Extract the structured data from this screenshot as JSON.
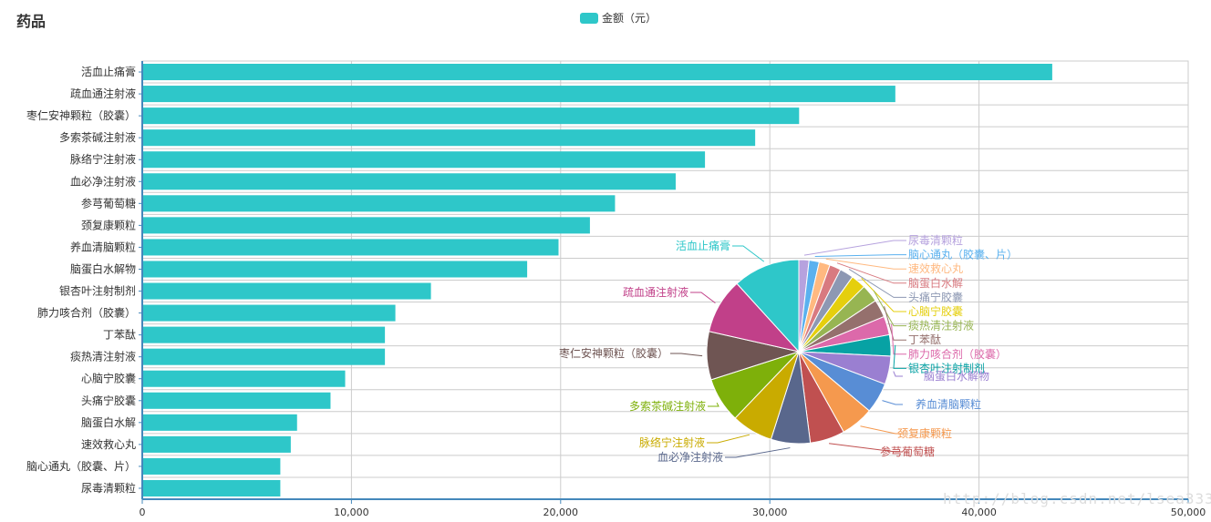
{
  "title": "药品",
  "legend": {
    "label": "金额（元）",
    "color": "#2ec7c9"
  },
  "watermark": "http://blog.csdn.net/lsea333",
  "chart_data": [
    {
      "type": "bar",
      "orientation": "horizontal",
      "series": [
        {
          "name": "金额（元）",
          "color": "#2ec7c9",
          "values": [
            43500,
            36000,
            31400,
            29300,
            26900,
            25500,
            22600,
            21400,
            19900,
            18400,
            13800,
            12100,
            11600,
            11600,
            9700,
            9000,
            7400,
            7100,
            6600,
            6600
          ]
        }
      ],
      "categories": [
        "活血止痛膏",
        "疏血通注射液",
        "枣仁安神颗粒（胶囊）",
        "多索茶碱注射液",
        "脉络宁注射液",
        "血必净注射液",
        "参芎葡萄糖",
        "颈复康颗粒",
        "养血清脑颗粒",
        "脑蛋白水解物",
        "银杏叶注射制剂",
        "肺力咳合剂（胶囊）",
        "丁苯酞",
        "痰热清注射液",
        "心脑宁胶囊",
        "头痛宁胶囊",
        "脑蛋白水解",
        "速效救心丸",
        "脑心通丸（胶囊、片）",
        "尿毒清颗粒"
      ],
      "xlim": [
        0,
        50000
      ],
      "xticks": [
        "0",
        "10,000",
        "20,000",
        "30,000",
        "40,000",
        "50,000"
      ],
      "grid": true
    },
    {
      "type": "pie",
      "slices": [
        {
          "label": "尿毒清颗粒",
          "value": 6600,
          "color": "#b6a2de"
        },
        {
          "label": "脑心通丸（胶囊、片）",
          "value": 6600,
          "color": "#5ab1ef"
        },
        {
          "label": "速效救心丸",
          "value": 7100,
          "color": "#ffb980"
        },
        {
          "label": "脑蛋白水解",
          "value": 7400,
          "color": "#d87a80"
        },
        {
          "label": "头痛宁胶囊",
          "value": 9000,
          "color": "#8d98b3"
        },
        {
          "label": "心脑宁胶囊",
          "value": 9700,
          "color": "#e5cf0d"
        },
        {
          "label": "痰热清注射液",
          "value": 11600,
          "color": "#97b552"
        },
        {
          "label": "丁苯酞",
          "value": 11600,
          "color": "#95706d"
        },
        {
          "label": "肺力咳合剂（胶囊）",
          "value": 12100,
          "color": "#dc69aa"
        },
        {
          "label": "银杏叶注射制剂",
          "value": 13800,
          "color": "#07a2a4"
        },
        {
          "label": "脑蛋白水解物",
          "value": 18400,
          "color": "#9a7fd1"
        },
        {
          "label": "养血清脑颗粒",
          "value": 19900,
          "color": "#588dd5"
        },
        {
          "label": "颈复康颗粒",
          "value": 21400,
          "color": "#f5994e"
        },
        {
          "label": "参芎葡萄糖",
          "value": 22600,
          "color": "#c05050"
        },
        {
          "label": "血必净注射液",
          "value": 25500,
          "color": "#59678c"
        },
        {
          "label": "脉络宁注射液",
          "value": 26900,
          "color": "#c9ab00"
        },
        {
          "label": "多索茶碱注射液",
          "value": 29300,
          "color": "#7eb00a"
        },
        {
          "label": "枣仁安神颗粒（胶囊）",
          "value": 31400,
          "color": "#6f5553"
        },
        {
          "label": "疏血通注射液",
          "value": 36000,
          "color": "#c14089"
        },
        {
          "label": "活血止痛膏",
          "value": 43500,
          "color": "#2ec7c9"
        }
      ]
    }
  ]
}
